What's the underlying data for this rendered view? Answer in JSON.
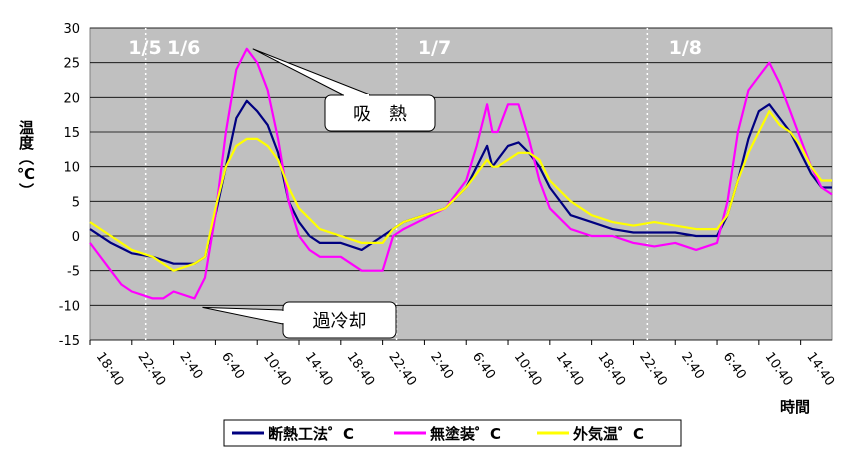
{
  "chart_data": {
    "type": "line",
    "title": "",
    "ylabel": "温度（℃）",
    "xlabel": "時間",
    "ylim": [
      -15,
      30
    ],
    "yticks": [
      -15,
      -10,
      -5,
      0,
      5,
      10,
      15,
      20,
      25,
      30
    ],
    "x_start": "1/5 18:40",
    "x_tick_labels": [
      "18:40",
      "22:40",
      "2:40",
      "6:40",
      "10:40",
      "14:40",
      "18:40",
      "22:40",
      "2:40",
      "6:40",
      "10:40",
      "14:40",
      "18:40",
      "22:40",
      "2:40",
      "6:40",
      "10:40",
      "14:40"
    ],
    "x_tick_hours": [
      0,
      4,
      8,
      12,
      16,
      20,
      24,
      28,
      32,
      36,
      40,
      44,
      48,
      52,
      56,
      60,
      64,
      68
    ],
    "x_max_hours": 71,
    "day_separators": [
      {
        "label": "1/5",
        "hours": null
      },
      {
        "label": "1/6",
        "hours": 5.33
      },
      {
        "label": "1/7",
        "hours": 29.33
      },
      {
        "label": "1/8",
        "hours": 53.33
      }
    ],
    "grid": true,
    "legend_position": "bottom",
    "series": [
      {
        "name": "断熱工法゜C",
        "color": "#000080",
        "x": [
          0,
          2,
          4,
          6,
          8,
          10,
          11,
          12,
          13,
          14,
          15,
          16,
          17,
          18,
          19,
          20,
          21,
          22,
          24,
          26,
          28,
          29,
          30,
          32,
          34,
          36,
          37,
          38,
          38.5,
          39,
          40,
          41,
          42,
          43,
          44,
          46,
          48,
          50,
          52,
          54,
          56,
          58,
          60,
          61,
          62,
          63,
          64,
          65,
          66,
          67,
          68,
          69,
          70,
          71
        ],
        "y": [
          1,
          -1,
          -2.5,
          -3,
          -4,
          -4,
          -3,
          3,
          10,
          17,
          19.5,
          18,
          16,
          12,
          5,
          2,
          0,
          -1,
          -1,
          -2,
          0,
          1,
          2,
          3,
          4,
          7,
          10,
          13,
          10,
          11,
          13,
          13.5,
          12,
          10,
          7,
          3,
          2,
          1,
          0.5,
          0.5,
          0.5,
          0,
          0,
          3,
          8,
          14,
          18,
          19,
          17,
          15,
          12,
          9,
          7,
          7
        ]
      },
      {
        "name": "無塗装゜C",
        "color": "#ff00ff",
        "x": [
          0,
          2,
          3,
          4,
          5,
          6,
          7,
          8,
          10,
          11,
          12,
          13,
          14,
          15,
          16,
          17,
          18,
          19,
          20,
          21,
          22,
          24,
          26,
          28,
          29,
          30,
          32,
          34,
          36,
          37,
          38,
          38.5,
          39,
          40,
          41,
          42,
          43,
          44,
          46,
          48,
          50,
          52,
          54,
          56,
          58,
          60,
          61,
          62,
          63,
          64,
          65,
          66,
          67,
          68,
          69,
          70,
          71
        ],
        "y": [
          -1,
          -5,
          -7,
          -8,
          -8.5,
          -9,
          -9,
          -8,
          -9,
          -6,
          3,
          15,
          24,
          27,
          25,
          21,
          14,
          5,
          0,
          -2,
          -3,
          -3,
          -5,
          -5,
          0,
          1,
          2.5,
          4,
          8,
          13,
          19,
          15,
          15,
          19,
          19,
          14,
          8,
          4,
          1,
          0,
          0,
          -1,
          -1.5,
          -1,
          -2,
          -1,
          5,
          15,
          21,
          23,
          25,
          22,
          18,
          14,
          10,
          7,
          6
        ]
      },
      {
        "name": "外気温゜C",
        "color": "#ffff00",
        "x": [
          0,
          2,
          4,
          6,
          8,
          10,
          11,
          12,
          13,
          14,
          15,
          16,
          17,
          18,
          19,
          20,
          21,
          22,
          24,
          26,
          28,
          29,
          30,
          32,
          34,
          36,
          37,
          38,
          38.5,
          39,
          40,
          41,
          42,
          43,
          44,
          46,
          48,
          50,
          52,
          54,
          56,
          58,
          60,
          61,
          62,
          63,
          64,
          65,
          66,
          67,
          68,
          69,
          70,
          71
        ],
        "y": [
          2,
          0,
          -2,
          -3,
          -5,
          -4,
          -3,
          4,
          10,
          13,
          14,
          14,
          13,
          11,
          7,
          4,
          2.5,
          1,
          0,
          -1,
          -1,
          1,
          2,
          3,
          4,
          7,
          9,
          11,
          10,
          10,
          11,
          12,
          12,
          11,
          8,
          5,
          3,
          2,
          1.5,
          2,
          1.5,
          1,
          1,
          3,
          8,
          12,
          15,
          18,
          16,
          15,
          13,
          10,
          8,
          8
        ]
      }
    ],
    "annotations": [
      {
        "text": "吸　熱",
        "points_to_series": "無塗装゜C",
        "at_hours": 15,
        "at_value": 27
      },
      {
        "text": "過冷却",
        "points_to_series": "無塗装゜C",
        "at_hours": 10,
        "at_value": -10
      }
    ]
  }
}
